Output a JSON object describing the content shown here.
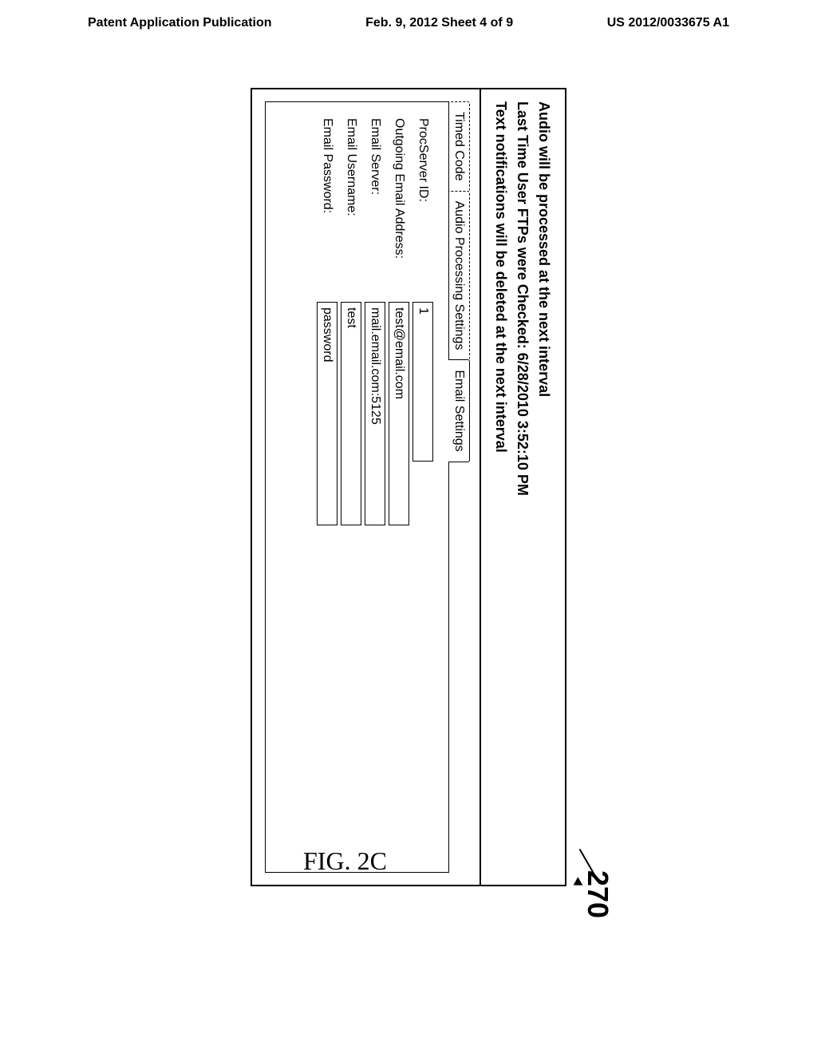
{
  "header": {
    "left": "Patent Application Publication",
    "center": "Feb. 9, 2012  Sheet 4 of 9",
    "right": "US 2012/0033675 A1"
  },
  "ref_number": "270",
  "status": {
    "line1": "Audio will be processed at the next interval",
    "line2": "Last Time User FTPs were Checked: 6/28/2010 3:52:10 PM",
    "line3": "Text notifications will be deleted at the next interval"
  },
  "tabs": [
    {
      "label": "Timed Code",
      "active": false
    },
    {
      "label": "Audio Processing Settings",
      "active": false
    },
    {
      "label": "Email Settings",
      "active": true
    }
  ],
  "form": {
    "procserver": {
      "label": "ProcServer ID:",
      "value": "1"
    },
    "email_address": {
      "label": "Outgoing Email Address:",
      "value": "test@email.com"
    },
    "email_server": {
      "label": "Email Server:",
      "value": "mail.email.com:5125"
    },
    "email_username": {
      "label": "Email Username:",
      "value": "test"
    },
    "email_password": {
      "label": "Email Password:",
      "value": "password"
    }
  },
  "figure_label": "FIG. 2C"
}
